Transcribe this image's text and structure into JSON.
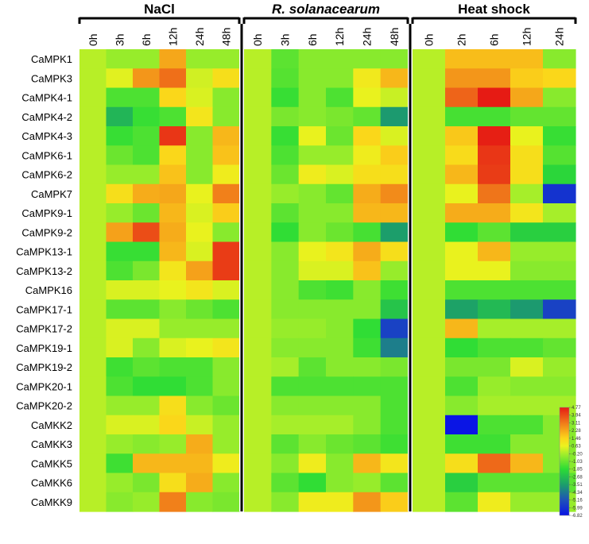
{
  "chart_data": {
    "type": "heatmap",
    "groups": [
      {
        "title": "NaCl",
        "italic": false,
        "columns": [
          "0h",
          "3h",
          "6h",
          "12h",
          "24h",
          "48h"
        ]
      },
      {
        "title": "R. solanacearum",
        "italic": true,
        "columns": [
          "0h",
          "3h",
          "6h",
          "12h",
          "24h",
          "48h"
        ]
      },
      {
        "title": "Heat shock",
        "italic": false,
        "columns": [
          "0h",
          "2h",
          "6h",
          "12h",
          "24h"
        ]
      }
    ],
    "rows": [
      "CaMPK1",
      "CaMPK3",
      "CaMPK4-1",
      "CaMPK4-2",
      "CaMPK4-3",
      "CaMPK6-1",
      "CaMPK6-2",
      "CaMPK7",
      "CaMPK9-1",
      "CaMPK9-2",
      "CaMPK13-1",
      "CaMPK13-2",
      "CaMPK16",
      "CaMPK17-1",
      "CaMPK17-2",
      "CaMPK19-1",
      "CaMPK19-2",
      "CaMPK20-1",
      "CaMPK20-2",
      "CaMKK2",
      "CaMKK3",
      "CaMKK5",
      "CaMKK6",
      "CaMKK9"
    ],
    "values": [
      [
        0,
        -0.4,
        -0.4,
        2.3,
        -0.4,
        -0.4,
        0,
        -1.2,
        -0.6,
        -0.6,
        -0.6,
        -0.6,
        0,
        1.9,
        1.9,
        1.9,
        -0.6
      ],
      [
        0,
        0.5,
        2.6,
        3.3,
        0.3,
        1.2,
        0,
        -1.3,
        -0.6,
        -0.6,
        0.9,
        2.0,
        0,
        2.6,
        2.6,
        1.6,
        1.4
      ],
      [
        0,
        -1.4,
        -1.4,
        1.4,
        0.4,
        -0.6,
        0,
        -1.7,
        -0.6,
        -1.4,
        0.6,
        0.2,
        0,
        3.5,
        4.8,
        2.3,
        -0.6
      ],
      [
        0,
        -2.9,
        -1.7,
        -1.4,
        1.0,
        -0.6,
        0,
        -0.8,
        -0.6,
        -0.8,
        -1.1,
        -3.6,
        0,
        -1.5,
        -1.5,
        -1.1,
        -1.1
      ],
      [
        0,
        -1.7,
        -1.4,
        4.3,
        -0.6,
        2.0,
        0,
        -1.7,
        0.6,
        -1.0,
        1.4,
        0.4,
        0,
        1.7,
        4.7,
        0.6,
        -1.7
      ],
      [
        0,
        -1.0,
        -1.4,
        1.4,
        -0.6,
        1.8,
        0,
        -1.4,
        -0.4,
        -0.4,
        0.8,
        1.6,
        0,
        1.3,
        4.3,
        1.2,
        -1.3
      ],
      [
        0,
        -0.4,
        -0.4,
        1.8,
        -0.6,
        0.8,
        0,
        -1.0,
        0.8,
        0.4,
        1.2,
        1.2,
        0,
        2.0,
        4.2,
        1.2,
        -2.0
      ],
      [
        0,
        1.2,
        2.2,
        2.3,
        0.6,
        3.0,
        0,
        -0.4,
        -0.6,
        -1.1,
        2.2,
        2.8,
        0,
        0.6,
        3.2,
        -0.2,
        -6.0
      ],
      [
        0,
        -0.4,
        -1.0,
        2.0,
        0.4,
        1.6,
        0,
        -1.2,
        -0.6,
        -0.6,
        2.0,
        2.0,
        0,
        2.2,
        2.2,
        1.0,
        -0.2
      ],
      [
        0,
        2.4,
        3.9,
        2.2,
        0.6,
        -0.6,
        0,
        -1.8,
        -0.6,
        -1.0,
        -1.5,
        -3.5,
        0,
        -1.8,
        -1.2,
        -2.2,
        -2.2
      ],
      [
        0,
        -1.7,
        -1.7,
        2.0,
        0.4,
        4.2,
        0,
        -0.6,
        0.6,
        1.0,
        2.2,
        1.2,
        0,
        0.6,
        2.0,
        -0.4,
        -0.4
      ],
      [
        0,
        -1.4,
        -0.8,
        1.0,
        2.4,
        4.2,
        0,
        -0.6,
        0.4,
        0.4,
        1.8,
        -0.4,
        0,
        0.6,
        0.6,
        -0.6,
        -0.6
      ],
      [
        0,
        0.4,
        0.4,
        0.6,
        1.0,
        0.4,
        0,
        -0.6,
        -1.4,
        -1.6,
        -0.6,
        -1.6,
        0,
        -1.4,
        -1.4,
        -1.4,
        -1.4
      ],
      [
        0,
        -1.2,
        -1.2,
        -0.6,
        -1.0,
        -1.4,
        0,
        -0.6,
        -0.6,
        -0.6,
        -0.6,
        -2.5,
        0,
        -3.4,
        -2.8,
        -3.6,
        -5.6
      ],
      [
        0,
        0.4,
        0.4,
        -0.4,
        -0.4,
        -0.4,
        0,
        -0.4,
        -0.4,
        -0.6,
        -1.8,
        -5.6,
        0,
        2.0,
        -0.2,
        -0.2,
        -0.2
      ],
      [
        0,
        0.4,
        -0.6,
        0.4,
        0.6,
        1.0,
        0,
        -0.6,
        -0.6,
        -0.6,
        -1.6,
        -4.2,
        0,
        -1.8,
        -1.4,
        -1.4,
        -1.1
      ],
      [
        0,
        -1.6,
        -1.2,
        -1.4,
        -1.4,
        -0.6,
        0,
        -0.2,
        -1.2,
        -0.6,
        -0.6,
        -0.8,
        0,
        -0.8,
        -0.8,
        0.4,
        -0.4
      ],
      [
        0,
        -1.4,
        -1.8,
        -1.8,
        -1.4,
        -0.6,
        0,
        -1.4,
        -1.4,
        -1.4,
        -1.4,
        -1.4,
        0,
        -1.4,
        -0.4,
        -0.6,
        -0.6
      ],
      [
        0,
        -0.4,
        -0.4,
        1.2,
        -0.6,
        -1.0,
        0,
        -0.6,
        -0.6,
        -0.6,
        -0.6,
        -1.4,
        0,
        -0.6,
        -0.2,
        -0.2,
        -0.2
      ],
      [
        0,
        0.4,
        0.4,
        1.4,
        0.2,
        -0.4,
        0,
        -0.2,
        -0.2,
        -0.2,
        -0.6,
        -1.4,
        0,
        -6.8,
        -1.4,
        -1.4,
        -0.6
      ],
      [
        0,
        -0.4,
        -0.6,
        -0.4,
        2.2,
        -0.4,
        0,
        -1.2,
        -0.6,
        -1.0,
        -1.2,
        -1.6,
        0,
        -1.6,
        -1.6,
        -0.6,
        -0.6
      ],
      [
        0,
        -1.6,
        2.0,
        2.0,
        2.0,
        0.8,
        0,
        -0.6,
        0.8,
        -0.6,
        2.0,
        1.0,
        0,
        1.2,
        3.4,
        2.0,
        -0.6
      ],
      [
        0,
        -0.4,
        -0.8,
        1.2,
        2.2,
        -0.6,
        0,
        -1.2,
        -1.8,
        -0.6,
        -0.4,
        -1.2,
        0,
        -2.2,
        -1.2,
        -1.2,
        -1.2
      ],
      [
        0,
        -0.6,
        -0.4,
        3.0,
        -0.6,
        -0.8,
        0,
        -0.6,
        0.8,
        0.8,
        2.6,
        1.6,
        0,
        -1.2,
        0.8,
        -0.4,
        -0.4
      ]
    ],
    "color_scale": {
      "min": -6.82,
      "max": 4.77,
      "tick_labels": [
        "4.77",
        "3.94",
        "3.11",
        "2.28",
        "1.46",
        "0.63",
        "-0.20",
        "-1.03",
        "-1.85",
        "-2.68",
        "-3.51",
        "-4.34",
        "-5.16",
        "-5.99",
        "-6.82"
      ],
      "stops": [
        {
          "v": 4.77,
          "c": "#e61b14"
        },
        {
          "v": 3.11,
          "c": "#f07a1a"
        },
        {
          "v": 1.46,
          "c": "#fbd51a"
        },
        {
          "v": 0.63,
          "c": "#ecf21e"
        },
        {
          "v": -0.2,
          "c": "#a6ee2a"
        },
        {
          "v": -1.85,
          "c": "#2cdc35"
        },
        {
          "v": -3.51,
          "c": "#1c9e6b"
        },
        {
          "v": -5.16,
          "c": "#1e52b8"
        },
        {
          "v": -6.82,
          "c": "#0a14e6"
        }
      ]
    }
  }
}
